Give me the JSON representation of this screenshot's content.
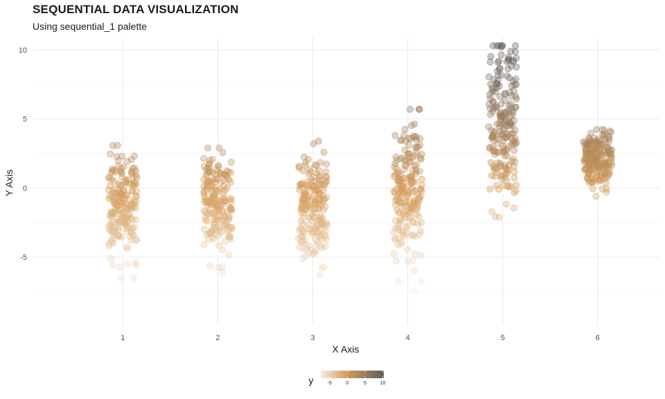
{
  "chart_data": {
    "type": "scatter",
    "title": "SEQUENTIAL DATA VISUALIZATION",
    "subtitle": "Using sequential_1 palette",
    "xlabel": "X Axis",
    "ylabel": "Y Axis",
    "x_ticks": [
      "1",
      "2",
      "3",
      "4",
      "5",
      "6"
    ],
    "y_ticks": [
      "-5",
      "0",
      "5",
      "10"
    ],
    "xlim": [
      0.05,
      6.65
    ],
    "ylim": [
      -9.9,
      10.9
    ],
    "grid": true,
    "jitter_width": 0.15,
    "point_alpha": 0.35,
    "legend": {
      "title": "y",
      "placement": "bottom",
      "type": "colorbar",
      "ticks": [
        "-5",
        "0",
        "5",
        "10"
      ],
      "range": [
        -7.5,
        10.3
      ]
    },
    "color_scale": {
      "stops": [
        {
          "value": -7.5,
          "color": "#f7ede1"
        },
        {
          "value": 0,
          "color": "#d49a57"
        },
        {
          "value": 5,
          "color": "#9a7c5e"
        },
        {
          "value": 10.3,
          "color": "#5b5b5b"
        }
      ]
    },
    "groups": [
      {
        "x": 1,
        "n": 190,
        "mean": -1.2,
        "sd": 1.8,
        "min": -6.5,
        "max": 3.2
      },
      {
        "x": 2,
        "n": 190,
        "mean": -1.0,
        "sd": 1.8,
        "min": -6.6,
        "max": 2.9
      },
      {
        "x": 3,
        "n": 190,
        "mean": -1.5,
        "sd": 2.0,
        "min": -7.4,
        "max": 4.2
      },
      {
        "x": 4,
        "n": 200,
        "mean": -0.3,
        "sd": 2.4,
        "min": -7.4,
        "max": 5.7
      },
      {
        "x": 5,
        "n": 210,
        "mean": 5.0,
        "sd": 2.7,
        "min": -2.6,
        "max": 10.3
      },
      {
        "x": 6,
        "n": 200,
        "mean": 2.0,
        "sd": 1.0,
        "min": -0.6,
        "max": 5.5
      }
    ]
  }
}
